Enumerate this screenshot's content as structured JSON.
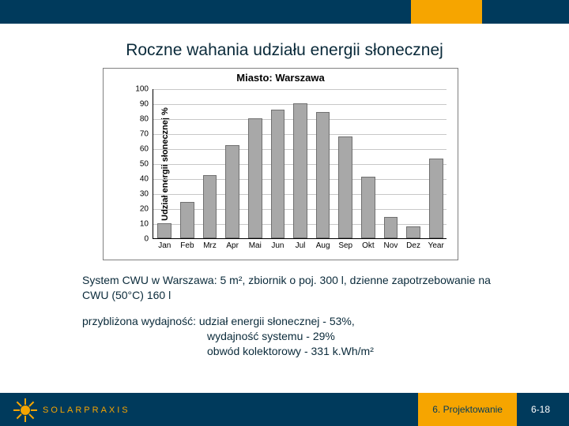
{
  "header": {
    "band_color": "#003a5c",
    "accent_color": "#f6a500"
  },
  "title": "Roczne wahania udziału energii słonecznej",
  "chart": {
    "type": "bar",
    "title": "Miasto: Warszawa",
    "title_fontsize": 13,
    "ylabel": "Udział energii słonecznej %",
    "ylabel_fontsize": 11,
    "ylim": [
      0,
      100
    ],
    "ytick_step": 10,
    "yticks": [
      0,
      10,
      20,
      30,
      40,
      50,
      60,
      70,
      80,
      90,
      100
    ],
    "categories": [
      "Jan",
      "Feb",
      "Mrz",
      "Apr",
      "Mai",
      "Jun",
      "Jul",
      "Aug",
      "Sep",
      "Okt",
      "Nov",
      "Dez",
      "Year"
    ],
    "values": [
      10,
      24,
      42,
      62,
      80,
      86,
      90,
      84,
      68,
      41,
      14,
      8,
      53
    ],
    "bar_color": "#a8a8a8",
    "bar_border_color": "#707070",
    "grid_color": "#c8c8c8",
    "axis_color": "#000000",
    "background_color": "#ffffff",
    "bar_width": 0.62,
    "xtick_fontsize": 10,
    "ytick_fontsize": 10
  },
  "paragraph1": "System CWU w Warszawa: 5 m², zbiornik o poj. 300 l, dzienne zapotrzebowanie na CWU (50°C) 160 l",
  "paragraph2_line1": "przybliżona wydajność: udział energii słonecznej - 53%,",
  "paragraph2_line2": "wydajność systemu - 29%",
  "paragraph2_line3": "obwód kolektorowy - 331 k.Wh/m²",
  "footer": {
    "logo_text": "SOLARPRAXIS",
    "section": "6. Projektowanie",
    "page": "6-18",
    "bg_color": "#003a5c",
    "accent_color": "#f6a500"
  }
}
